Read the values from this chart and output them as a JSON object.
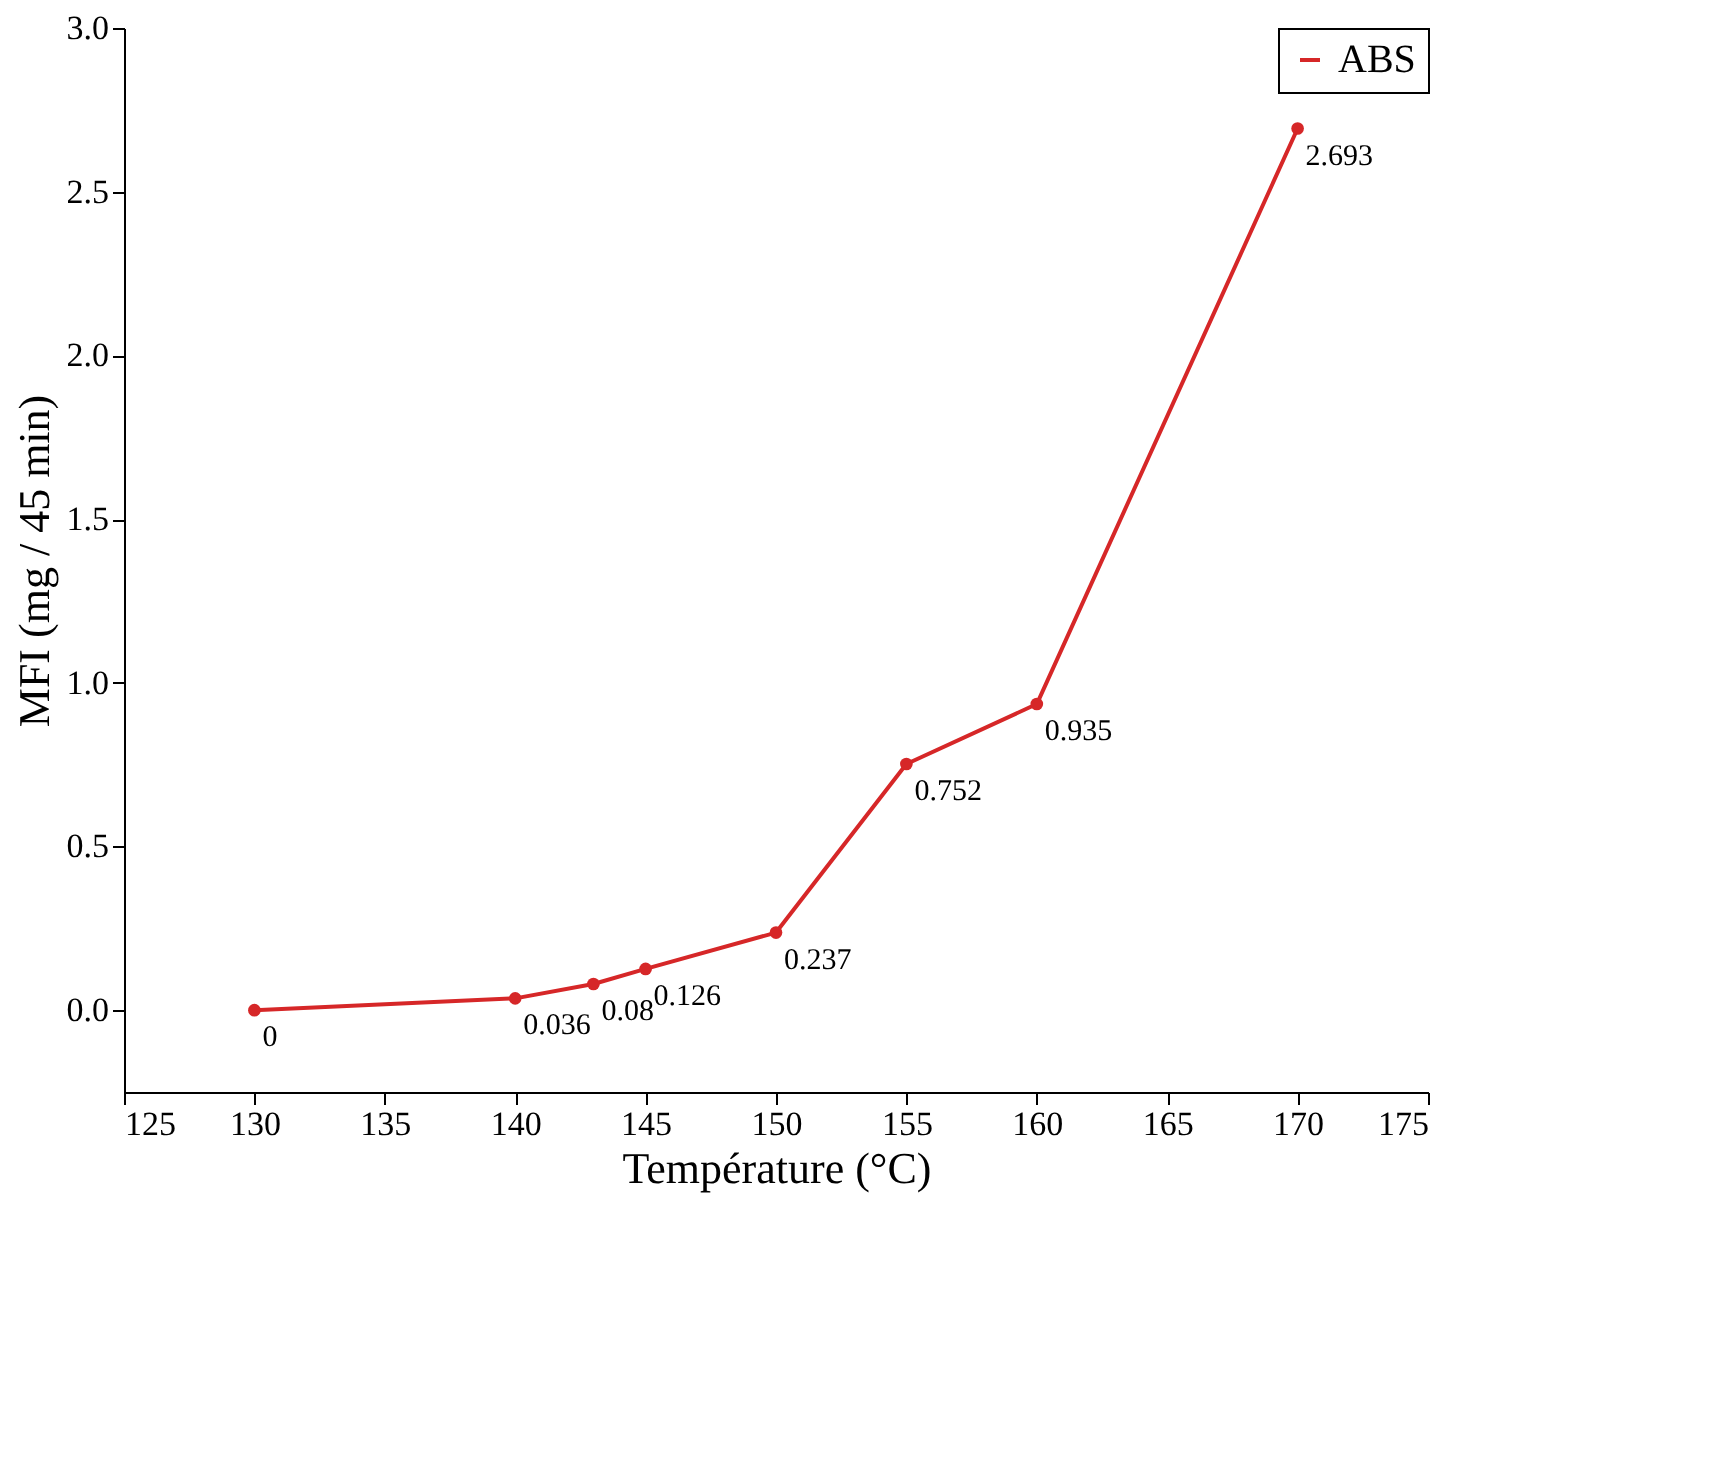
{
  "chart_data": {
    "type": "line",
    "xlabel": "Température (°C)",
    "ylabel": "MFI (mg / 45 min)",
    "x": [
      130,
      140,
      143,
      145,
      150,
      155,
      160,
      170
    ],
    "series": [
      {
        "name": "ABS",
        "color": "#d62728",
        "values": [
          0,
          0.036,
          0.08,
          0.126,
          0.237,
          0.752,
          0.935,
          2.693
        ]
      }
    ],
    "xlim": [
      125,
      175
    ],
    "xticks": [
      125,
      130,
      135,
      140,
      145,
      150,
      155,
      160,
      165,
      170,
      175
    ],
    "ylim": [
      -0.25,
      3.0
    ],
    "yticks": [
      {
        "value": 0,
        "label": "0.0"
      },
      {
        "value": 0.5,
        "label": "0.5"
      },
      {
        "value": 1,
        "label": "1.0"
      },
      {
        "value": 1.5,
        "label": "1.5"
      },
      {
        "value": 2,
        "label": "2.0"
      },
      {
        "value": 2.5,
        "label": "2.5"
      },
      {
        "value": 3,
        "label": "3.0"
      }
    ],
    "data_labels": true,
    "marker": "circle",
    "line_style": "solid",
    "grid": false,
    "legend": "top right"
  }
}
